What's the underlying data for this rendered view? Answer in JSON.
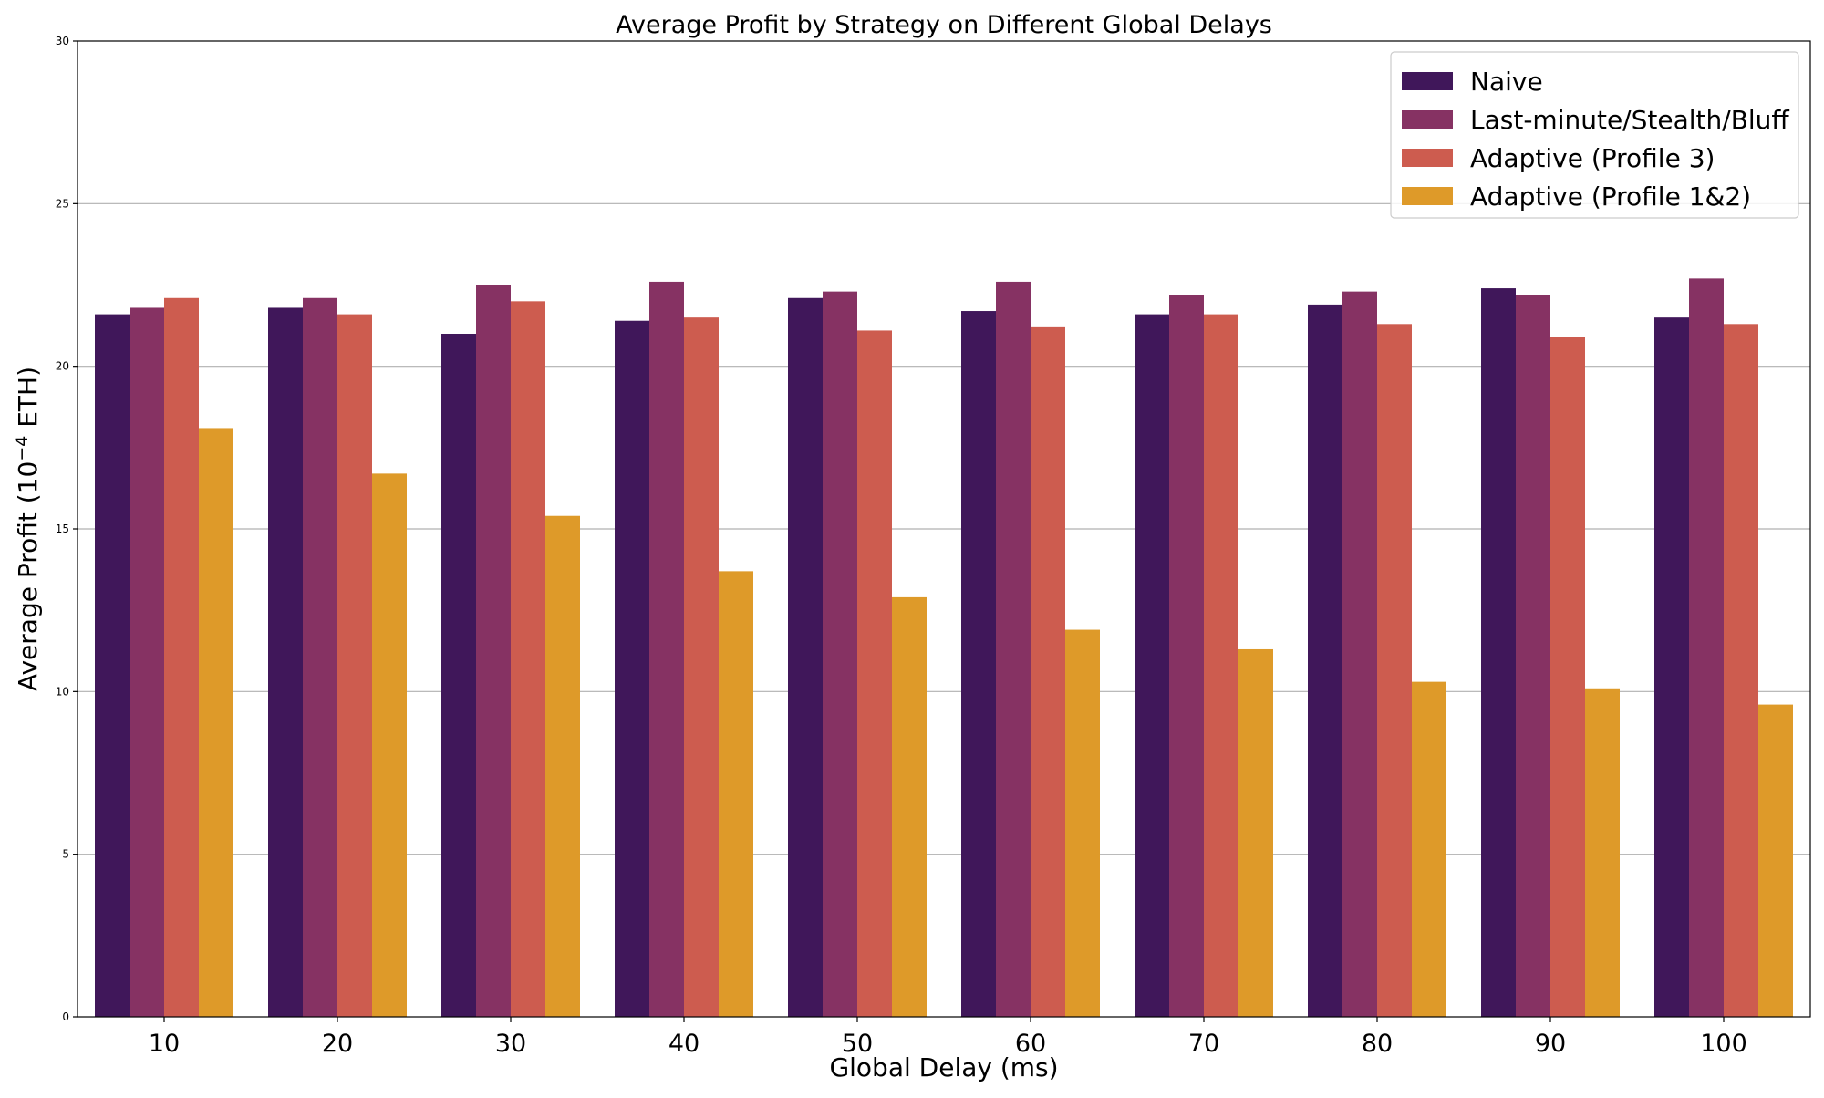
{
  "chart_data": {
    "type": "bar",
    "title": "Average Profit by Strategy on Different Global Delays",
    "xlabel": "Global Delay (ms)",
    "ylabel_prefix": "Average Profit (10",
    "ylabel_exp": "−4",
    "ylabel_suffix": " ETH)",
    "ylim": [
      0,
      30
    ],
    "yticks": [
      0,
      5,
      10,
      15,
      20,
      25,
      30
    ],
    "grid": "horizontal",
    "legend_position": "top-right",
    "categories": [
      "10",
      "20",
      "30",
      "40",
      "50",
      "60",
      "70",
      "80",
      "90",
      "100"
    ],
    "series": [
      {
        "name": "Naive",
        "color": "#40175a",
        "values": [
          21.6,
          21.8,
          21.0,
          21.4,
          22.1,
          21.7,
          21.6,
          21.9,
          22.4,
          21.5
        ]
      },
      {
        "name": "Last-minute/Stealth/Bluff",
        "color": "#863263",
        "values": [
          21.8,
          22.1,
          22.5,
          22.6,
          22.3,
          22.6,
          22.2,
          22.3,
          22.2,
          22.7
        ]
      },
      {
        "name": "Adaptive (Profile 3)",
        "color": "#cd5c4f",
        "values": [
          22.1,
          21.6,
          22.0,
          21.5,
          21.1,
          21.2,
          21.6,
          21.3,
          20.9,
          21.3
        ]
      },
      {
        "name": "Adaptive (Profile 1&2)",
        "color": "#de9a29",
        "values": [
          18.1,
          16.7,
          15.4,
          13.7,
          12.9,
          11.9,
          11.3,
          10.3,
          10.1,
          9.6
        ]
      }
    ]
  }
}
